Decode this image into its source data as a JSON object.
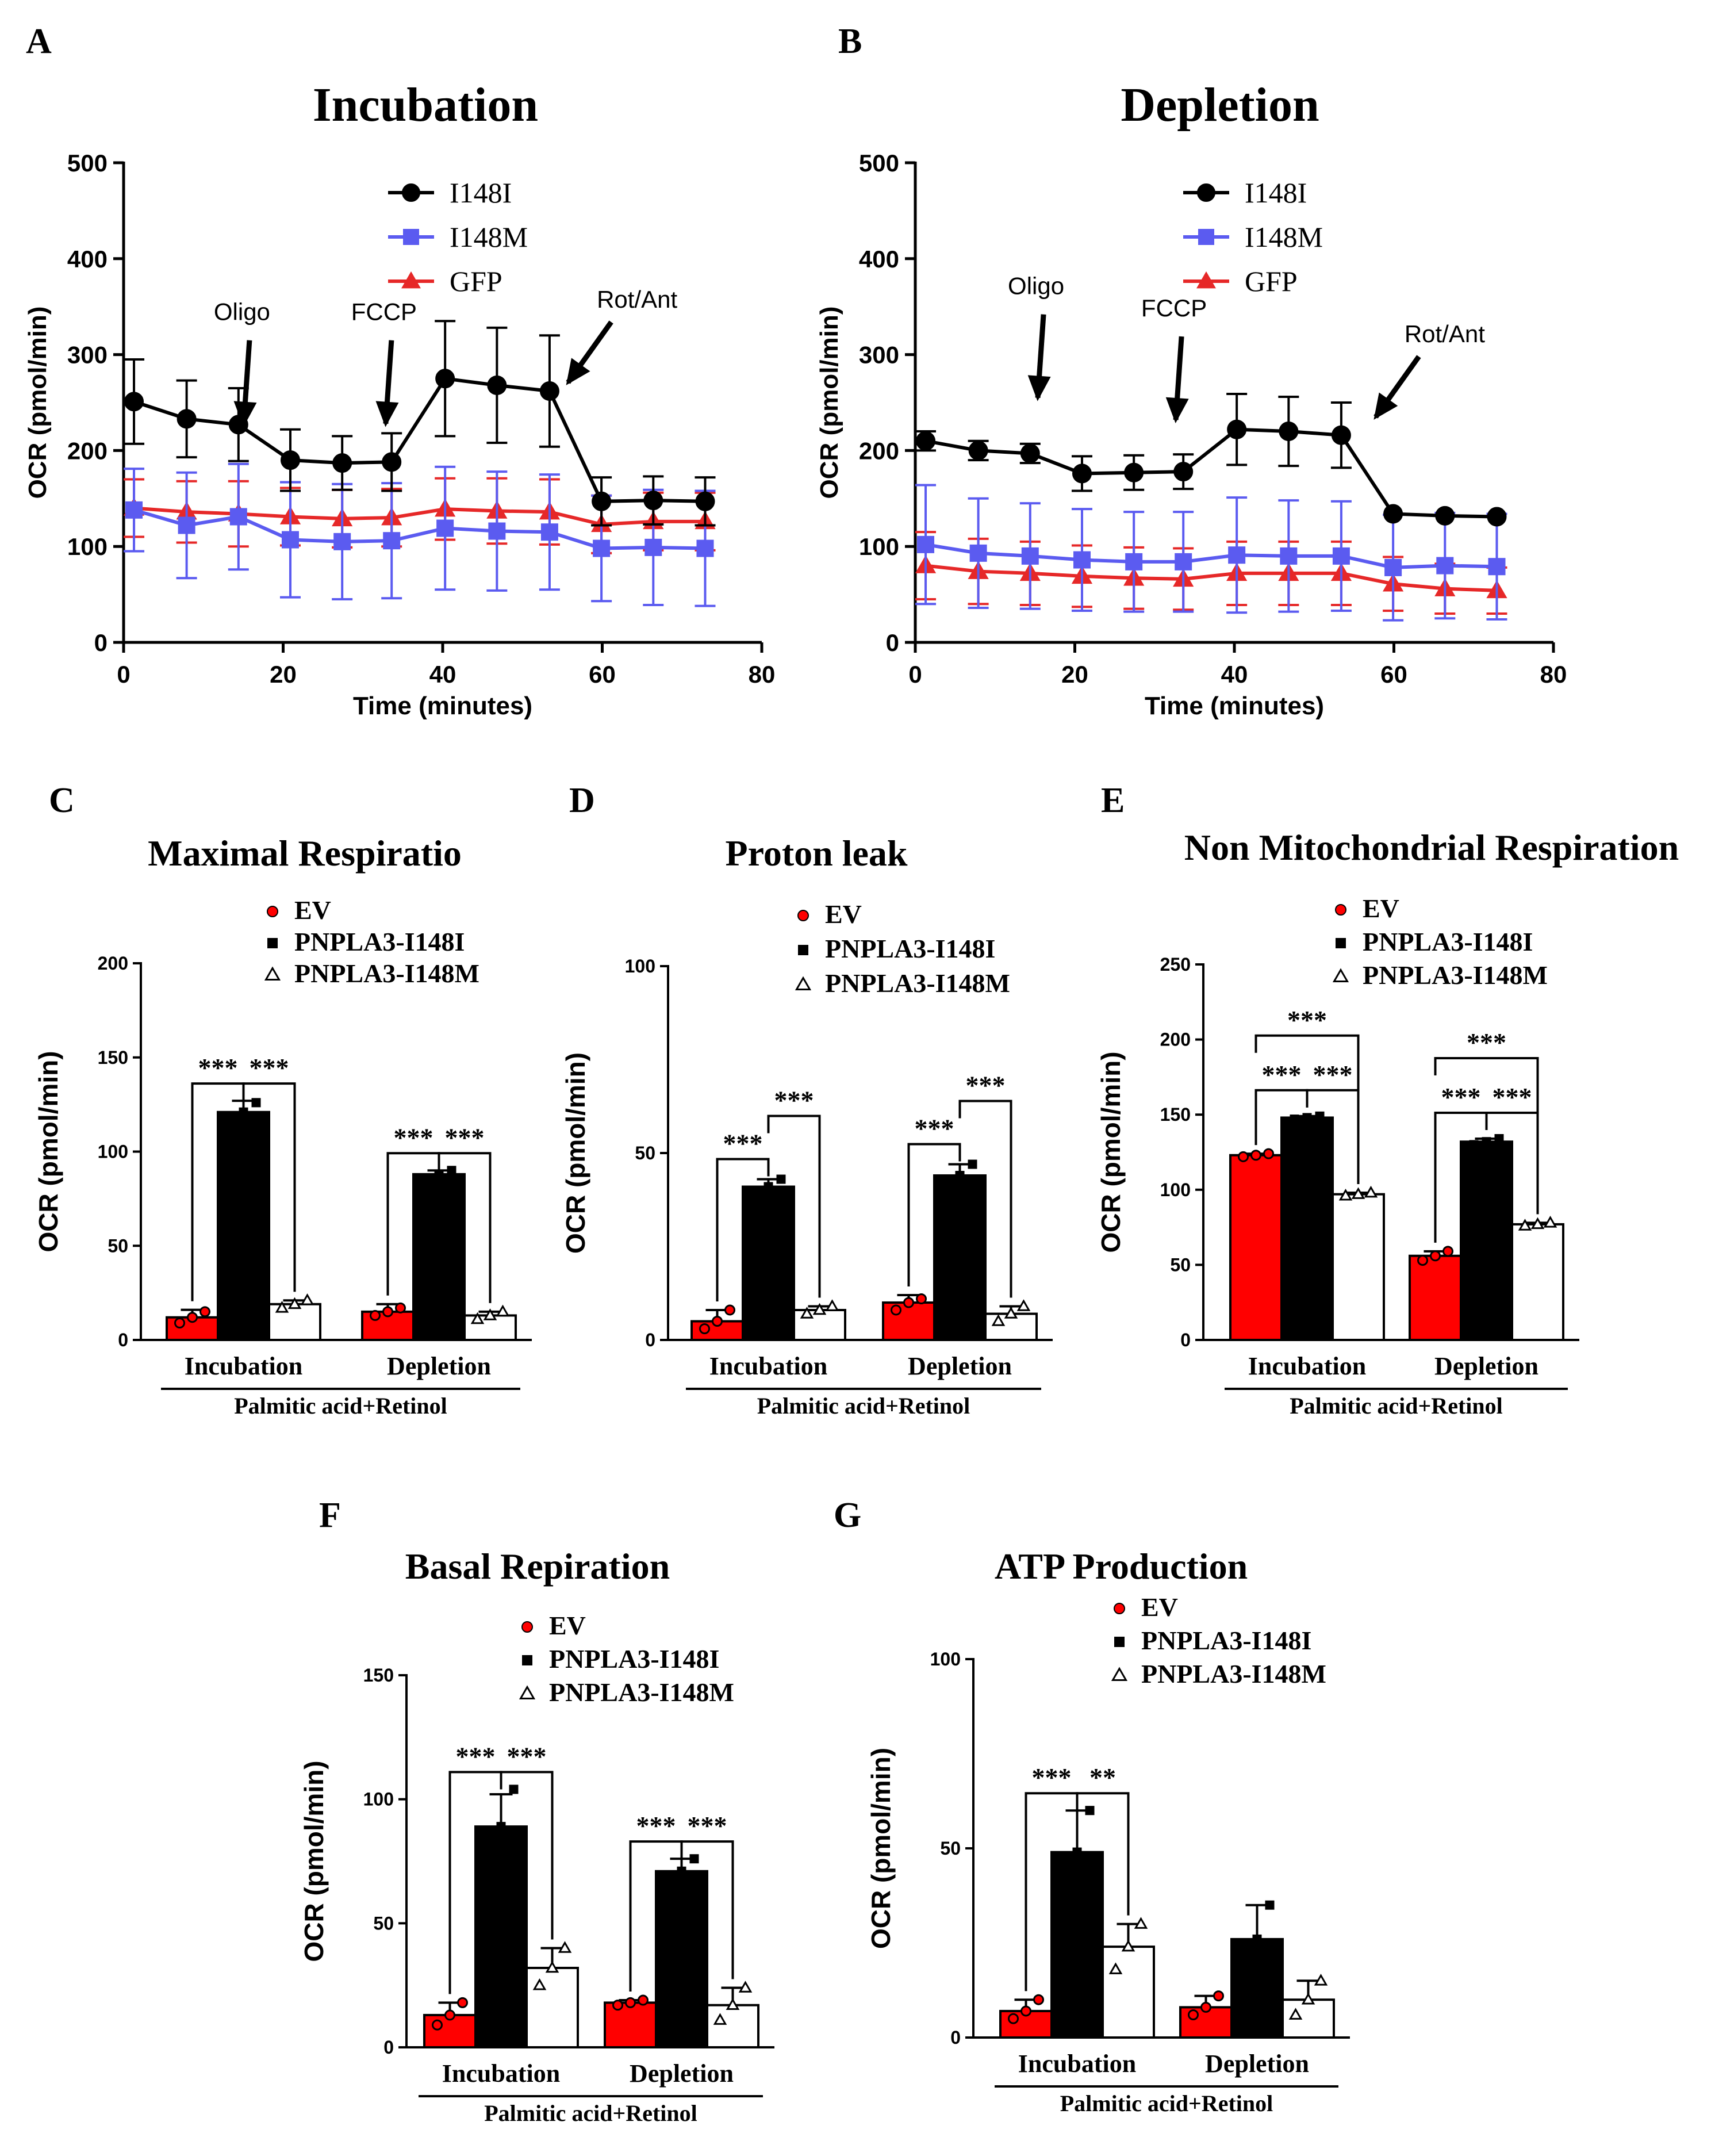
{
  "figure": {
    "background": "#ffffff",
    "line_color": "#000000"
  },
  "colors": {
    "black": "#000000",
    "blue": "#5b5bf0",
    "red": "#e62828",
    "bar_red": "#ff0000",
    "bar_black": "#000000",
    "bar_white": "#ffffff"
  },
  "chart_data": [
    {
      "id": "A",
      "panel_letter": "A",
      "type": "line",
      "title": "Incubation",
      "xlabel": "Time (minutes)",
      "ylabel": "OCR (pmol/min)",
      "xlim": [
        0,
        80
      ],
      "ylim": [
        0,
        500
      ],
      "xticks": [
        0,
        20,
        40,
        60,
        80
      ],
      "yticks": [
        0,
        100,
        200,
        300,
        400,
        500
      ],
      "x": [
        1.3,
        7.9,
        14.4,
        20.9,
        27.4,
        33.6,
        40.3,
        46.8,
        53.4,
        59.9,
        66.4,
        72.9
      ],
      "series": [
        {
          "name": "I148I",
          "color": "#000000",
          "marker": "circle",
          "values": [
            251,
            233,
            227,
            190,
            187,
            188,
            275,
            268,
            262,
            147,
            148,
            147
          ],
          "errors": [
            44,
            40,
            38,
            32,
            28,
            30,
            60,
            60,
            58,
            25,
            25,
            25
          ]
        },
        {
          "name": "I148M",
          "color": "#5b5bf0",
          "marker": "square",
          "values": [
            138,
            122,
            131,
            107,
            105,
            106,
            119,
            116,
            115,
            98,
            99,
            98
          ],
          "errors": [
            43,
            55,
            55,
            60,
            60,
            60,
            64,
            62,
            60,
            55,
            60,
            60
          ]
        },
        {
          "name": "GFP",
          "color": "#e62828",
          "marker": "triangle",
          "values": [
            140,
            136,
            134,
            131,
            129,
            130,
            139,
            137,
            136,
            123,
            126,
            126
          ],
          "errors": [
            30,
            32,
            34,
            30,
            30,
            30,
            32,
            34,
            34,
            30,
            30,
            30
          ]
        }
      ],
      "annotations": [
        {
          "label": "Oligo",
          "x": 15.2,
          "y": 228
        },
        {
          "label": "FCCP",
          "x": 33.0,
          "y": 228
        },
        {
          "label": "Rot/Ant",
          "x": 55.0,
          "y": 268
        }
      ]
    },
    {
      "id": "B",
      "panel_letter": "B",
      "type": "line",
      "title": "Depletion",
      "xlabel": "Time (minutes)",
      "ylabel": "OCR (pmol/min)",
      "xlim": [
        0,
        80
      ],
      "ylim": [
        0,
        500
      ],
      "xticks": [
        0,
        20,
        40,
        60,
        80
      ],
      "yticks": [
        0,
        100,
        200,
        300,
        400,
        500
      ],
      "x": [
        1.3,
        7.9,
        14.4,
        20.9,
        27.4,
        33.6,
        40.3,
        46.8,
        53.4,
        59.9,
        66.4,
        72.9
      ],
      "series": [
        {
          "name": "I148I",
          "color": "#000000",
          "marker": "circle",
          "values": [
            210,
            200,
            197,
            176,
            177,
            178,
            222,
            220,
            216,
            134,
            132,
            131
          ],
          "errors": [
            10,
            10,
            10,
            18,
            18,
            18,
            37,
            36,
            34,
            0,
            0,
            0
          ]
        },
        {
          "name": "I148M",
          "color": "#5b5bf0",
          "marker": "square",
          "values": [
            102,
            93,
            90,
            86,
            84,
            84,
            91,
            90,
            90,
            78,
            80,
            79
          ],
          "errors": [
            62,
            57,
            55,
            53,
            52,
            52,
            60,
            58,
            57,
            55,
            55,
            55
          ]
        },
        {
          "name": "GFP",
          "color": "#e62828",
          "marker": "triangle",
          "values": [
            80,
            74,
            72,
            69,
            67,
            66,
            72,
            72,
            72,
            61,
            56,
            54
          ],
          "errors": [
            35,
            34,
            33,
            32,
            32,
            32,
            33,
            33,
            33,
            28,
            26,
            24
          ]
        }
      ],
      "annotations": [
        {
          "label": "Oligo",
          "x": 15.5,
          "y": 255
        },
        {
          "label": "FCCP",
          "x": 32.8,
          "y": 232
        },
        {
          "label": "Rot/Ant",
          "x": 57.0,
          "y": 232
        }
      ]
    },
    {
      "id": "C",
      "panel_letter": "C",
      "type": "bar",
      "title": "Maximal Respiratio",
      "ylabel": "OCR (pmol/min)",
      "ylim": [
        0,
        200
      ],
      "yticks": [
        0,
        50,
        100,
        150,
        200
      ],
      "categories": [
        "Incubation",
        "Depletion"
      ],
      "group_label": "Palmitic acid+Retinol",
      "series": [
        {
          "name": "EV",
          "values": [
            12,
            15
          ],
          "errors": [
            4,
            4
          ],
          "points": [
            [
              9,
              12,
              15
            ],
            [
              13,
              15,
              17
            ]
          ]
        },
        {
          "name": "PNPLA3-I148I",
          "values": [
            121,
            88
          ],
          "errors": [
            6,
            2
          ],
          "points": [
            [
              118,
              121,
              126
            ],
            [
              86,
              88,
              90
            ]
          ]
        },
        {
          "name": "PNPLA3-I148M",
          "values": [
            19,
            13
          ],
          "errors": [
            2,
            2
          ],
          "points": [
            [
              17,
              19,
              21
            ],
            [
              11,
              13,
              15
            ]
          ]
        }
      ],
      "significance": [
        {
          "cat": 0,
          "from": 0,
          "to": 1,
          "label": "***"
        },
        {
          "cat": 0,
          "from": 1,
          "to": 2,
          "label": "***"
        },
        {
          "cat": 1,
          "from": 0,
          "to": 1,
          "label": "***"
        },
        {
          "cat": 1,
          "from": 1,
          "to": 2,
          "label": "***"
        }
      ]
    },
    {
      "id": "D",
      "panel_letter": "D",
      "type": "bar",
      "title": "Proton leak",
      "ylabel": "OCR (pmol/min)",
      "ylim": [
        0,
        100
      ],
      "yticks": [
        0,
        50,
        100
      ],
      "categories": [
        "Incubation",
        "Depletion"
      ],
      "group_label": "Palmitic acid+Retinol",
      "series": [
        {
          "name": "EV",
          "values": [
            5,
            10
          ],
          "errors": [
            3,
            2
          ],
          "points": [
            [
              3,
              5,
              8
            ],
            [
              8,
              10,
              11
            ]
          ]
        },
        {
          "name": "PNPLA3-I148I",
          "values": [
            41,
            44
          ],
          "errors": [
            2,
            3
          ],
          "points": [
            [
              39,
              41,
              43
            ],
            [
              42,
              44,
              47
            ]
          ]
        },
        {
          "name": "PNPLA3-I148M",
          "values": [
            8,
            7
          ],
          "errors": [
            1,
            2
          ],
          "points": [
            [
              7,
              8,
              9
            ],
            [
              5,
              7,
              9
            ]
          ]
        }
      ],
      "significance": [
        {
          "cat": 0,
          "from": 0,
          "to": 1,
          "label": "***"
        },
        {
          "cat": 0,
          "from": 1,
          "to": 2,
          "label": "***"
        },
        {
          "cat": 1,
          "from": 0,
          "to": 1,
          "label": "***"
        },
        {
          "cat": 1,
          "from": 1,
          "to": 2,
          "label": "***"
        }
      ]
    },
    {
      "id": "E",
      "panel_letter": "E",
      "type": "bar",
      "title": "Non Mitochondrial Respiration",
      "ylabel": "OCR (pmol/min)",
      "ylim": [
        0,
        250
      ],
      "yticks": [
        0,
        50,
        100,
        150,
        200,
        250
      ],
      "categories": [
        "Incubation",
        "Depletion"
      ],
      "group_label": "Palmitic acid+Retinol",
      "series": [
        {
          "name": "EV",
          "values": [
            123,
            56
          ],
          "errors": [
            1,
            3
          ],
          "points": [
            [
              122,
              123,
              124
            ],
            [
              53,
              56,
              59
            ]
          ]
        },
        {
          "name": "PNPLA3-I148I",
          "values": [
            148,
            132
          ],
          "errors": [
            1,
            2
          ],
          "points": [
            [
              147,
              148,
              149
            ],
            [
              130,
              132,
              134
            ]
          ]
        },
        {
          "name": "PNPLA3-I148M",
          "values": [
            97,
            77
          ],
          "errors": [
            1,
            1
          ],
          "points": [
            [
              96,
              97,
              98
            ],
            [
              76,
              77,
              78
            ]
          ]
        }
      ],
      "significance": [
        {
          "cat": 0,
          "from": 0,
          "to": 1,
          "label": "***"
        },
        {
          "cat": 0,
          "from": 1,
          "to": 2,
          "label": "***"
        },
        {
          "cat": 0,
          "from": 0,
          "to": 2,
          "label": "***"
        },
        {
          "cat": 1,
          "from": 0,
          "to": 1,
          "label": "***"
        },
        {
          "cat": 1,
          "from": 1,
          "to": 2,
          "label": "***"
        },
        {
          "cat": 1,
          "from": 0,
          "to": 2,
          "label": "***"
        }
      ]
    },
    {
      "id": "F",
      "panel_letter": "F",
      "type": "bar",
      "title": "Basal Repiration",
      "ylabel": "OCR (pmol/min)",
      "ylim": [
        0,
        150
      ],
      "yticks": [
        0,
        50,
        100,
        150
      ],
      "categories": [
        "Incubation",
        "Depletion"
      ],
      "group_label": "Palmitic acid+Retinol",
      "series": [
        {
          "name": "EV",
          "values": [
            13,
            18
          ],
          "errors": [
            5,
            1
          ],
          "points": [
            [
              9,
              13,
              18
            ],
            [
              17,
              18,
              19
            ]
          ]
        },
        {
          "name": "PNPLA3-I148I",
          "values": [
            89,
            71
          ],
          "errors": [
            13,
            5
          ],
          "points": [
            [
              76,
              89,
              104
            ],
            [
              66,
              71,
              76
            ]
          ]
        },
        {
          "name": "PNPLA3-I148M",
          "values": [
            32,
            17
          ],
          "errors": [
            8,
            7
          ],
          "points": [
            [
              25,
              32,
              40
            ],
            [
              11,
              17,
              24
            ]
          ]
        }
      ],
      "significance": [
        {
          "cat": 0,
          "from": 0,
          "to": 1,
          "label": "***"
        },
        {
          "cat": 0,
          "from": 1,
          "to": 2,
          "label": "***"
        },
        {
          "cat": 1,
          "from": 0,
          "to": 1,
          "label": "***"
        },
        {
          "cat": 1,
          "from": 1,
          "to": 2,
          "label": "***"
        }
      ]
    },
    {
      "id": "G",
      "panel_letter": "G",
      "type": "bar",
      "title": "ATP Production",
      "ylabel": "OCR (pmol/min)",
      "ylim": [
        0,
        100
      ],
      "yticks": [
        0,
        50,
        100
      ],
      "categories": [
        "Incubation",
        "Depletion"
      ],
      "group_label": "Palmitic acid+Retinol",
      "series": [
        {
          "name": "EV",
          "values": [
            7,
            8
          ],
          "errors": [
            3,
            3
          ],
          "points": [
            [
              5,
              7,
              10
            ],
            [
              6,
              8,
              11
            ]
          ]
        },
        {
          "name": "PNPLA3-I148I",
          "values": [
            49,
            26
          ],
          "errors": [
            11,
            9
          ],
          "points": [
            [
              38,
              49,
              60
            ],
            [
              20,
              26,
              35
            ]
          ]
        },
        {
          "name": "PNPLA3-I148M",
          "values": [
            24,
            10
          ],
          "errors": [
            6,
            5
          ],
          "points": [
            [
              18,
              24,
              30
            ],
            [
              6,
              10,
              15
            ]
          ]
        }
      ],
      "significance": [
        {
          "cat": 0,
          "from": 0,
          "to": 1,
          "label": "***"
        },
        {
          "cat": 0,
          "from": 1,
          "to": 2,
          "label": "**"
        }
      ]
    }
  ]
}
